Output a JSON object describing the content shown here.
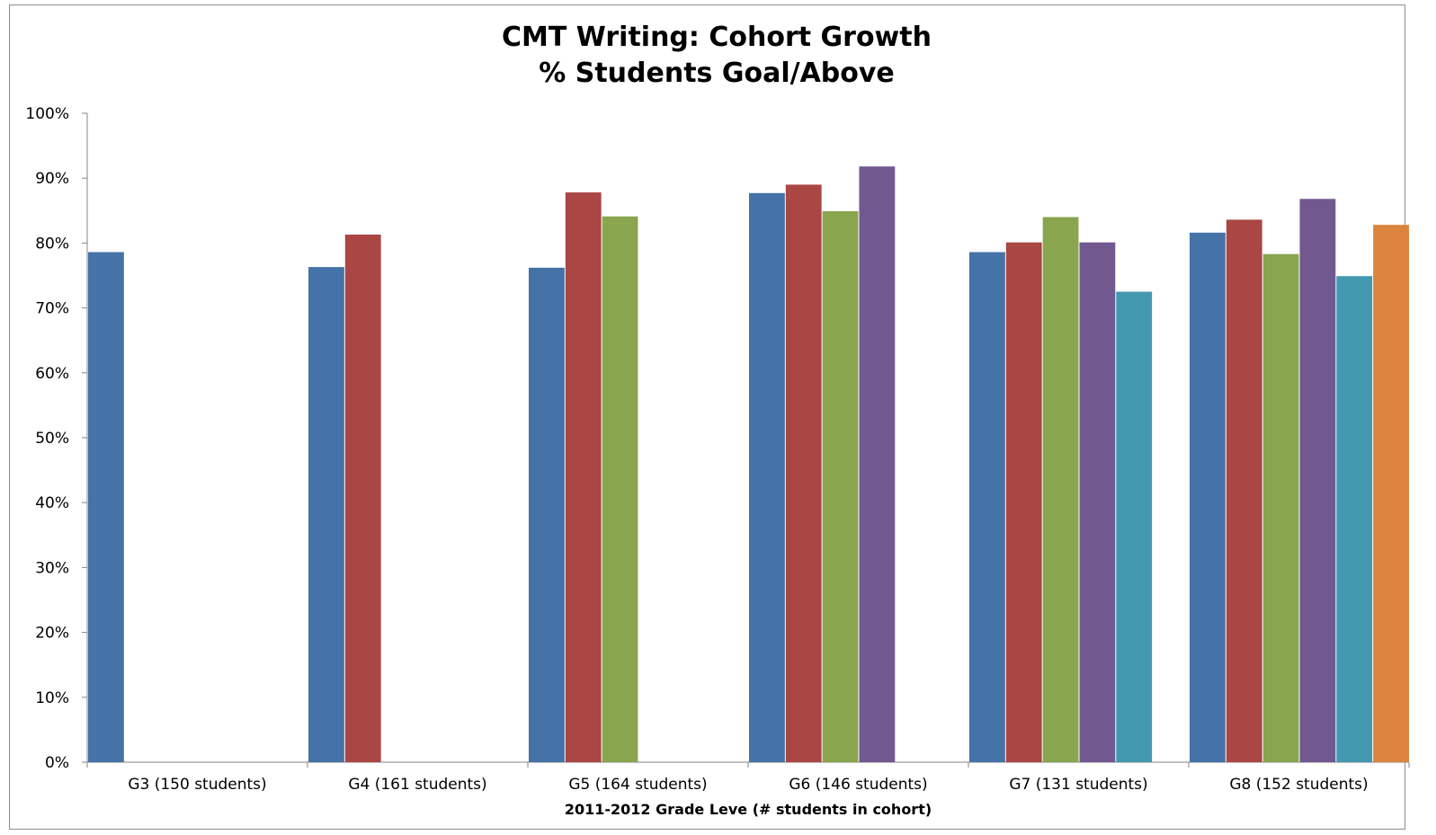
{
  "chart_data": {
    "type": "bar",
    "title": [
      "CMT Writing: Cohort Growth",
      "% Students Goal/Above"
    ],
    "xlabel": "2011-2012 Grade Leve (# students in cohort)",
    "ylabel": "",
    "ylim": [
      0,
      100
    ],
    "yticks": [
      0,
      10,
      20,
      30,
      40,
      50,
      60,
      70,
      80,
      90,
      100
    ],
    "ytick_suffix": "%",
    "grid": false,
    "legend": "none",
    "categories": [
      "G3 (150 students)",
      "G4 (161 students)",
      "G5 (164 students)",
      "G6 (146 students)",
      "G7 (131 students)",
      "G8 (152 students)"
    ],
    "series": [
      {
        "color": "#4572A7",
        "values": [
          78.6,
          76.3,
          76.2,
          87.7,
          78.6,
          81.6
        ]
      },
      {
        "color": "#AA4643",
        "values": [
          null,
          81.3,
          87.8,
          89.0,
          80.1,
          83.6
        ]
      },
      {
        "color": "#89A54E",
        "values": [
          null,
          null,
          84.1,
          84.9,
          84.0,
          78.3
        ]
      },
      {
        "color": "#71588F",
        "values": [
          null,
          null,
          null,
          91.8,
          80.1,
          86.8
        ]
      },
      {
        "color": "#4198AF",
        "values": [
          null,
          null,
          null,
          null,
          72.5,
          74.9
        ]
      },
      {
        "color": "#DB843D",
        "values": [
          null,
          null,
          null,
          null,
          null,
          82.8
        ]
      }
    ]
  }
}
